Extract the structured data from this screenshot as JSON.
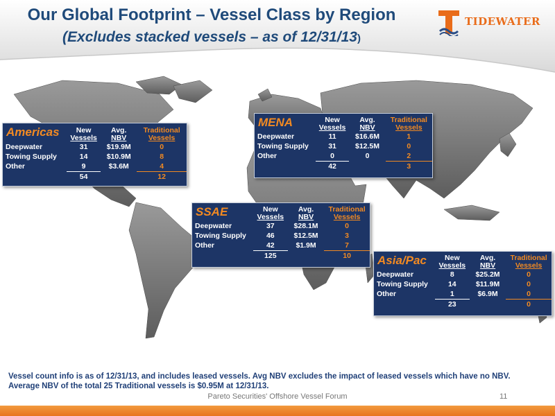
{
  "header": {
    "title": "Our Global Footprint – Vessel Class by Region",
    "subtitle": "(Excludes stacked vessels – as of 12/31/13",
    "subtitle_paren": ")"
  },
  "logo": {
    "text": "TIDEWATER",
    "icon": "tidewater-t-logo",
    "color": "#e96c1a"
  },
  "columns": {
    "new": [
      "New",
      "Vessels"
    ],
    "nbv": [
      "Avg.",
      "NBV"
    ],
    "trad": [
      "Traditional",
      "Vessels"
    ]
  },
  "regions": {
    "americas": {
      "name": "Americas",
      "rows": [
        {
          "label": "Deepwater",
          "new": "31",
          "nbv": "$19.9M",
          "trad": "0"
        },
        {
          "label": "Towing Supply",
          "new": "14",
          "nbv": "$10.9M",
          "trad": "8"
        },
        {
          "label": "Other",
          "new": "9",
          "nbv": "$3.6M",
          "trad": "4"
        }
      ],
      "total_new": "54",
      "total_trad": "12"
    },
    "mena": {
      "name": "MENA",
      "rows": [
        {
          "label": "Deepwater",
          "new": "11",
          "nbv": "$16.6M",
          "trad": "1"
        },
        {
          "label": "Towing Supply",
          "new": "31",
          "nbv": "$12.5M",
          "trad": "0"
        },
        {
          "label": "Other",
          "new": "0",
          "nbv": "0",
          "trad": "2"
        }
      ],
      "total_new": "42",
      "total_trad": "3"
    },
    "ssae": {
      "name": "SSAE",
      "rows": [
        {
          "label": "Deepwater",
          "new": "37",
          "nbv": "$28.1M",
          "trad": "0"
        },
        {
          "label": "Towing Supply",
          "new": "46",
          "nbv": "$12.5M",
          "trad": "3"
        },
        {
          "label": "Other",
          "new": "42",
          "nbv": "$1.9M",
          "trad": "7"
        }
      ],
      "total_new": "125",
      "total_trad": "10"
    },
    "asiapac": {
      "name": "Asia/Pac",
      "rows": [
        {
          "label": "Deepwater",
          "new": "8",
          "nbv": "$25.2M",
          "trad": "0"
        },
        {
          "label": "Towing Supply",
          "new": "14",
          "nbv": "$11.9M",
          "trad": "0"
        },
        {
          "label": "Other",
          "new": "1",
          "nbv": "$6.9M",
          "trad": "0"
        }
      ],
      "total_new": "23",
      "total_trad": "0"
    }
  },
  "footnote": [
    "Vessel count info is as of 12/31/13, and includes leased vessels. Avg NBV excludes the impact of leased vessels which have no NBV.",
    "Average NBV of the total 25 Traditional vessels is $0.95M at 12/31/13."
  ],
  "footer": {
    "text": "Pareto Securities' Offshore Vessel Forum",
    "page": "11"
  },
  "colors": {
    "title": "#1f4a7a",
    "panel": "#1d3566",
    "accent": "#f28a22",
    "bar": "#e8741e"
  }
}
